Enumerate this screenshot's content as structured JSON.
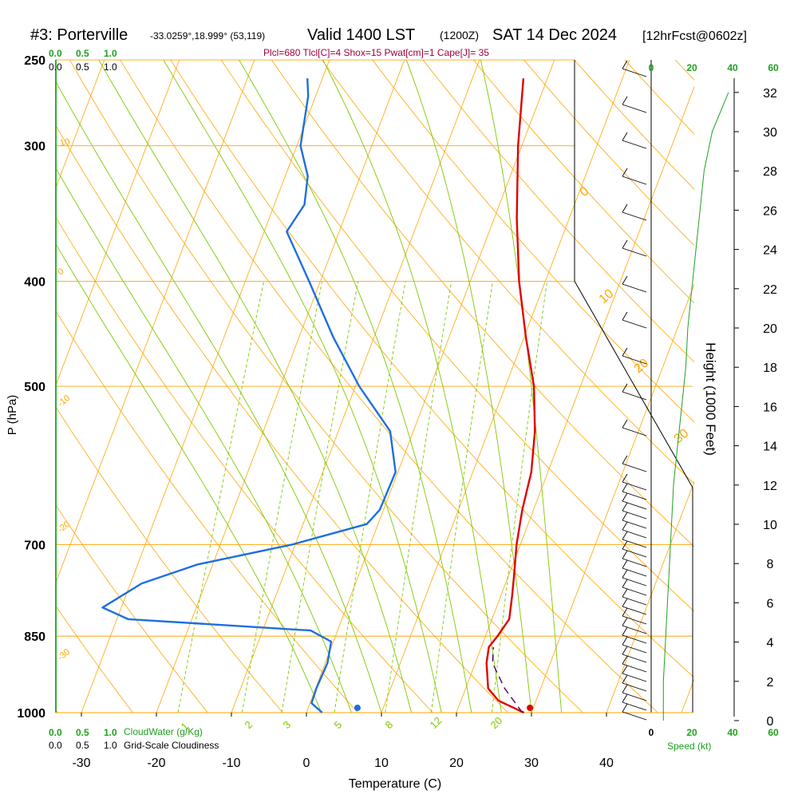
{
  "header": {
    "station": "#3: Porterville",
    "coords": "-33.0259°,18.999° (53,119)",
    "valid": "Valid 1400 LST",
    "valid_z": "(1200Z)",
    "date": "SAT 14 Dec 2024",
    "forecast": "[12hrFcst@0602z]"
  },
  "indices": "Plcl=680 Tlcl[C]=4 Shox=15 Pwat[cm]=1 Cape[J]= 35",
  "colors": {
    "isobar": "#ffa500",
    "temp": "#e00000",
    "dewpoint": "#1e6ee0",
    "mixing": "#7dc800",
    "cloud": "#20a020",
    "parcel": "#500070",
    "indices": "#a00040"
  },
  "chart_data": {
    "type": "line",
    "title": "#3: Porterville Valid 1400 LST (1200Z) SAT 14 Dec 2024",
    "xlabel": "Temperature (C)",
    "ylabel": "P (hPa)",
    "right_label": "Height (1000 Feet)",
    "x_ticks": [
      "-30",
      "-20",
      "-10",
      "0",
      "10",
      "20",
      "30",
      "40"
    ],
    "p_ticks": [
      "250",
      "300",
      "400",
      "500",
      "700",
      "850",
      "1000"
    ],
    "height_ticks": [
      "0",
      "2",
      "4",
      "6",
      "8",
      "10",
      "12",
      "14",
      "16",
      "18",
      "20",
      "22",
      "24",
      "26",
      "28",
      "30",
      "32"
    ],
    "isotherm_labels": [
      "10",
      "0",
      "-10",
      "-20",
      "-30",
      "0",
      "10",
      "20",
      "30"
    ],
    "mixing_labels": [
      "1",
      "2",
      "3",
      "5",
      "8",
      "12",
      "20"
    ],
    "cloud_scale_top_green": [
      "0.0",
      "0.5",
      "1.0"
    ],
    "cloud_scale_top_black": [
      "0.0",
      "0.5",
      "1.0"
    ],
    "cloud_scale_bottom_green": [
      "0.0",
      "0.5",
      "1.0"
    ],
    "cloud_scale_bottom_black": [
      "0.0",
      "0.5",
      "1.0"
    ],
    "cloudwater_label": "CloudWater (g/Kg)",
    "cloudiness_label": "Grid-Scale Cloudiness",
    "speed_label": "Speed (kt)",
    "speed_ticks": [
      "0",
      "20",
      "40",
      "60"
    ],
    "series": [
      {
        "name": "temperature",
        "points": [
          [
            1000,
            29
          ],
          [
            975,
            25
          ],
          [
            950,
            23
          ],
          [
            900,
            21.5
          ],
          [
            870,
            21
          ],
          [
            850,
            21.6
          ],
          [
            820,
            22.3
          ],
          [
            780,
            21.5
          ],
          [
            750,
            20.8
          ],
          [
            700,
            19.5
          ],
          [
            650,
            18.5
          ],
          [
            600,
            17.8
          ],
          [
            550,
            16.2
          ],
          [
            500,
            13.8
          ],
          [
            450,
            10.2
          ],
          [
            400,
            6.5
          ],
          [
            350,
            3.0
          ],
          [
            300,
            -0.5
          ],
          [
            260,
            -3.2
          ]
        ]
      },
      {
        "name": "dewpoint",
        "points": [
          [
            1000,
            2.1
          ],
          [
            980,
            0.2
          ],
          [
            950,
            0.1
          ],
          [
            900,
            0.3
          ],
          [
            860,
            -0.3
          ],
          [
            840,
            -3.6
          ],
          [
            820,
            -28.5
          ],
          [
            800,
            -32.5
          ],
          [
            760,
            -28.5
          ],
          [
            730,
            -22
          ],
          [
            700,
            -10.5
          ],
          [
            670,
            -1.5
          ],
          [
            650,
            -0.5
          ],
          [
            600,
            -0.3
          ],
          [
            550,
            -3.1
          ],
          [
            500,
            -9.5
          ],
          [
            450,
            -15.5
          ],
          [
            400,
            -21.5
          ],
          [
            360,
            -27
          ],
          [
            340,
            -26
          ],
          [
            320,
            -27
          ],
          [
            300,
            -29.5
          ],
          [
            270,
            -31
          ],
          [
            260,
            -32
          ]
        ]
      },
      {
        "name": "parcel",
        "points": [
          [
            1000,
            28.8
          ],
          [
            950,
            25.2
          ],
          [
            900,
            22.3
          ],
          [
            870,
            21.6
          ]
        ]
      }
    ],
    "surface_temp": 29.8,
    "surface_dewpoint": 6.8,
    "wind_speed_profile_kt": [
      [
        0,
        6
      ],
      [
        2,
        6
      ],
      [
        4,
        7
      ],
      [
        6,
        8
      ],
      [
        8,
        9
      ],
      [
        10,
        10
      ],
      [
        12,
        11
      ],
      [
        14,
        13
      ],
      [
        16,
        15
      ],
      [
        18,
        17
      ],
      [
        20,
        18
      ],
      [
        22,
        20
      ],
      [
        24,
        22
      ],
      [
        26,
        24
      ],
      [
        28,
        26
      ],
      [
        30,
        30
      ],
      [
        32,
        38
      ]
    ]
  }
}
